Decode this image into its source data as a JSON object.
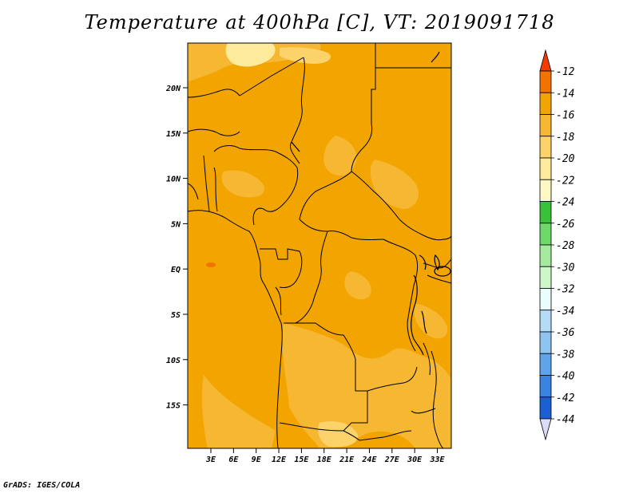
{
  "title": "Temperature at 400hPa [C], VT: 2019091718",
  "credit": "GrADS: IGES/COLA",
  "map": {
    "lat_labels": [
      "20N",
      "15N",
      "10N",
      "5N",
      "EQ",
      "5S",
      "10S",
      "15S"
    ],
    "lon_labels": [
      "3E",
      "6E",
      "9E",
      "12E",
      "15E",
      "18E",
      "21E",
      "24E",
      "27E",
      "30E",
      "33E"
    ],
    "colors": {
      "c14_12": "#f2a400",
      "c16_14": "#f6b833",
      "c18_16": "#fbd36a",
      "c20_18": "#fdea9a",
      "c12_10": "#f47300",
      "boundary": "#000000"
    }
  },
  "colorbar": {
    "labels": [
      "-12",
      "-14",
      "-16",
      "-18",
      "-20",
      "-22",
      "-24",
      "-26",
      "-28",
      "-30",
      "-32",
      "-34",
      "-36",
      "-38",
      "-40",
      "-42",
      "-44"
    ],
    "colors": [
      "#f23c00",
      "#f47300",
      "#f2a400",
      "#f6b833",
      "#fbd36a",
      "#fdea9a",
      "#fef8c4",
      "#38c23a",
      "#6fd86a",
      "#a4eba0",
      "#cdf7c8",
      "#e9fdfd",
      "#b5dcf6",
      "#8fc3f0",
      "#5fa3e9",
      "#3a83e0",
      "#1c5fd3",
      "#1040b6",
      "#0a1f8f",
      "#dcdcf8"
    ]
  }
}
